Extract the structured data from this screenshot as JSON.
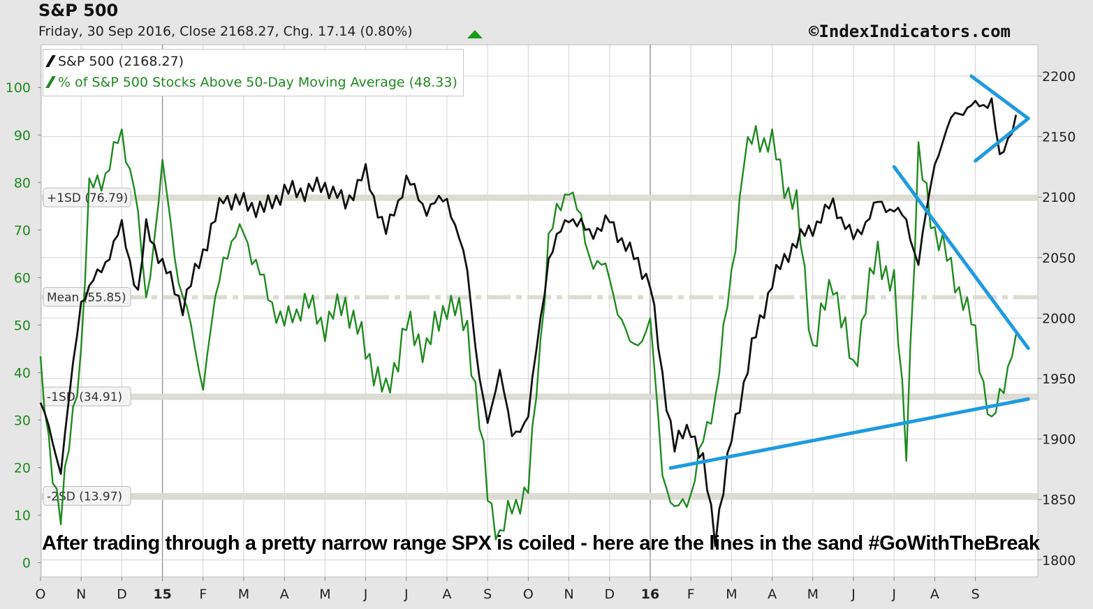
{
  "header": {
    "title": "S&P 500",
    "subtitle": "Friday, 30 Sep 2016, Close 2168.27, Chg. 17.14 (0.80%)",
    "change_direction_icon": "up-triangle-icon",
    "copyright": "©IndexIndicators.com"
  },
  "legend": {
    "items": [
      {
        "label": "S&P 500 (2168.27)",
        "color": "#111111"
      },
      {
        "label": "% of S&P 500 Stocks Above 50-Day Moving Average (48.33)",
        "color": "#1f8a1f"
      }
    ]
  },
  "annotation": "After trading through a pretty narrow range SPX is coiled - here are the lines in the sand #GoWithTheBreak",
  "colors": {
    "spx": "#111111",
    "breadth": "#1f8a1f",
    "trendlines": "#1e9be0",
    "plot_bg": "#ffffff",
    "band": "#dcdcd4",
    "grid": "#d4d4d4",
    "left_axis_text": "#1f8a1f",
    "right_axis_text": "#222222"
  },
  "chart_data": {
    "type": "line",
    "x_ticks": [
      "O",
      "N",
      "D",
      "15",
      "F",
      "M",
      "A",
      "M",
      "J",
      "J",
      "A",
      "S",
      "O",
      "N",
      "D",
      "16",
      "F",
      "M",
      "A",
      "M",
      "J",
      "J",
      "A",
      "S"
    ],
    "bold_x_ticks": [
      "15",
      "16"
    ],
    "left_axis": {
      "ticks": [
        0,
        10,
        20,
        30,
        40,
        50,
        60,
        70,
        80,
        90,
        100
      ],
      "range": [
        -3,
        109
      ]
    },
    "right_axis": {
      "ticks": [
        1800,
        1850,
        1900,
        1950,
        2000,
        2050,
        2100,
        2150,
        2200
      ],
      "range": [
        1786,
        2226
      ]
    },
    "reference_bands": [
      {
        "label": "+1SD (76.79)",
        "value": 76.79,
        "style": "solid"
      },
      {
        "label": "Mean (55.85)",
        "value": 55.85,
        "style": "dashdot"
      },
      {
        "label": "-1SD (34.91)",
        "value": 34.91,
        "style": "solid"
      },
      {
        "label": "-2SD (13.97)",
        "value": 13.97,
        "style": "solid"
      }
    ],
    "series": [
      {
        "name": "S&P 500 (2168.27)",
        "axis": "right",
        "months": [
          0,
          0.5,
          1,
          1.5,
          2,
          2.4,
          2.6,
          3,
          3.5,
          4,
          4.5,
          5,
          5.5,
          6,
          6.5,
          7,
          7.5,
          8,
          8.5,
          9,
          9.5,
          10,
          10.5,
          10.8,
          11,
          11.3,
          11.6,
          12,
          12.5,
          13,
          13.5,
          14,
          14.5,
          15,
          15.3,
          15.6,
          16,
          16.3,
          16.6,
          17,
          17.5,
          18,
          18.5,
          19,
          19.5,
          20,
          20.4,
          20.6,
          21,
          21.3,
          21.6,
          22,
          22.5,
          23,
          23.4,
          23.6,
          24
        ],
        "values": [
          1930,
          1875,
          2015,
          2040,
          2075,
          2020,
          2075,
          2045,
          2010,
          2055,
          2100,
          2095,
          2090,
          2105,
          2105,
          2110,
          2095,
          2120,
          2070,
          2115,
          2090,
          2100,
          2040,
          1950,
          1910,
          1960,
          1900,
          1920,
          2050,
          2085,
          2070,
          2080,
          2055,
          2030,
          1950,
          1895,
          1910,
          1880,
          1820,
          1900,
          1975,
          2030,
          2060,
          2075,
          2095,
          2065,
          2085,
          2095,
          2090,
          2080,
          2045,
          2130,
          2170,
          2175,
          2180,
          2130,
          2168
        ]
      },
      {
        "name": "% of S&P 500 Stocks Above 50-Day Moving Average (48.33)",
        "axis": "left",
        "months": [
          0,
          0.2,
          0.5,
          1,
          1.2,
          1.6,
          2,
          2.3,
          2.6,
          3,
          3.4,
          3.8,
          4,
          4.5,
          5,
          5.5,
          6,
          6.5,
          7,
          7.5,
          8,
          8.5,
          9,
          9.5,
          10,
          10.5,
          11,
          11.3,
          11.6,
          12,
          12.5,
          13,
          13.5,
          14,
          14.5,
          15,
          15.3,
          15.6,
          16,
          16.3,
          16.6,
          17,
          17.3,
          17.6,
          18,
          18.3,
          18.6,
          19,
          19.5,
          20,
          20.3,
          20.6,
          21,
          21.3,
          21.6,
          22,
          22.5,
          23,
          23.4,
          23.6,
          24
        ],
        "values": [
          40,
          25,
          10,
          45,
          78,
          82,
          90,
          80,
          55,
          83,
          60,
          45,
          38,
          65,
          70,
          58,
          50,
          55,
          50,
          55,
          45,
          35,
          50,
          45,
          55,
          50,
          15,
          5,
          12,
          15,
          68,
          80,
          65,
          60,
          45,
          50,
          20,
          10,
          15,
          25,
          35,
          60,
          85,
          90,
          88,
          80,
          75,
          45,
          60,
          40,
          55,
          65,
          58,
          25,
          85,
          70,
          60,
          48,
          28,
          35,
          48
        ]
      }
    ],
    "trendlines": [
      {
        "from": [
          15.5,
          1876
        ],
        "to": [
          24.3,
          1933
        ]
      },
      {
        "from": [
          21.0,
          2125
        ],
        "to": [
          24.3,
          1975
        ]
      },
      {
        "from": [
          22.9,
          2200
        ],
        "to": [
          24.3,
          2165
        ]
      },
      {
        "from": [
          23.0,
          2130
        ],
        "to": [
          24.3,
          2165
        ]
      }
    ]
  }
}
